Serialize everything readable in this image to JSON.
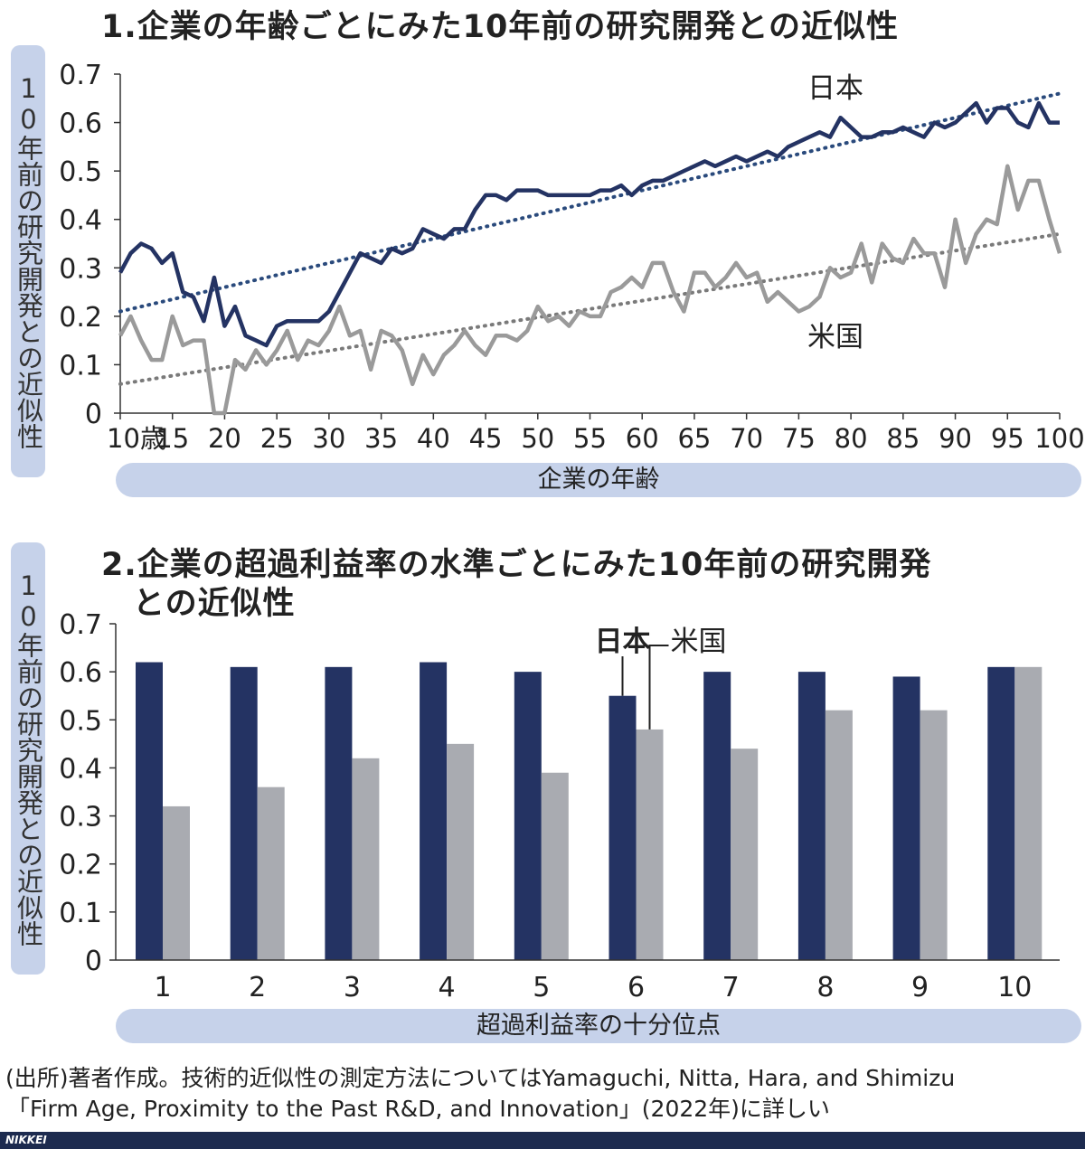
{
  "charts": {
    "chart1": {
      "title": "1.企業の年齢ごとにみた10年前の研究開発との近似性",
      "ylabel": "10年前の研究開発との近似性",
      "xlabel": "企業の年齢",
      "first_tick_label": "10歳"
    },
    "chart2": {
      "title_line1": "2.企業の超過利益率の水準ごとにみた10年前の研究開発",
      "title_line2": "との近似性",
      "ylabel": "10年前の研究開発との近似性",
      "xlabel": "超過利益率の十分位点"
    }
  },
  "colors": {
    "japan": "#243363",
    "us": "#9a9a9a",
    "us_bar": "#a9abb1",
    "label_bg": "#c6d2ea"
  },
  "chart_data": [
    {
      "type": "line",
      "title": "1.企業の年齢ごとにみた10年前の研究開発との近似性",
      "xlabel": "企業の年齢",
      "ylabel": "10年前の研究開発との近似性",
      "xlim": [
        10,
        100
      ],
      "ylim": [
        0,
        0.7
      ],
      "x_ticks": [
        "10歳",
        "15",
        "20",
        "25",
        "30",
        "35",
        "40",
        "45",
        "50",
        "55",
        "60",
        "65",
        "70",
        "75",
        "80",
        "85",
        "90",
        "95",
        "100"
      ],
      "y_ticks": [
        "0",
        "0.1",
        "0.2",
        "0.3",
        "0.4",
        "0.5",
        "0.6",
        "0.7"
      ],
      "x": [
        10,
        11,
        12,
        13,
        14,
        15,
        16,
        17,
        18,
        19,
        20,
        21,
        22,
        23,
        24,
        25,
        26,
        27,
        28,
        29,
        30,
        31,
        32,
        33,
        34,
        35,
        36,
        37,
        38,
        39,
        40,
        41,
        42,
        43,
        44,
        45,
        46,
        47,
        48,
        49,
        50,
        51,
        52,
        53,
        54,
        55,
        56,
        57,
        58,
        59,
        60,
        61,
        62,
        63,
        64,
        65,
        66,
        67,
        68,
        69,
        70,
        71,
        72,
        73,
        74,
        75,
        76,
        77,
        78,
        79,
        80,
        81,
        82,
        83,
        84,
        85,
        86,
        87,
        88,
        89,
        90,
        91,
        92,
        93,
        94,
        95,
        96,
        97,
        98,
        99,
        100
      ],
      "series": [
        {
          "name": "日本",
          "values": [
            0.29,
            0.33,
            0.35,
            0.34,
            0.31,
            0.33,
            0.25,
            0.24,
            0.19,
            0.28,
            0.18,
            0.22,
            0.16,
            0.15,
            0.14,
            0.18,
            0.19,
            0.19,
            0.19,
            0.19,
            0.21,
            0.25,
            0.29,
            0.33,
            0.32,
            0.31,
            0.34,
            0.33,
            0.34,
            0.38,
            0.37,
            0.36,
            0.38,
            0.38,
            0.42,
            0.45,
            0.45,
            0.44,
            0.46,
            0.46,
            0.46,
            0.45,
            0.45,
            0.45,
            0.45,
            0.45,
            0.46,
            0.46,
            0.47,
            0.45,
            0.47,
            0.48,
            0.48,
            0.49,
            0.5,
            0.51,
            0.52,
            0.51,
            0.52,
            0.53,
            0.52,
            0.53,
            0.54,
            0.53,
            0.55,
            0.56,
            0.57,
            0.58,
            0.57,
            0.61,
            0.59,
            0.57,
            0.57,
            0.58,
            0.58,
            0.59,
            0.58,
            0.57,
            0.6,
            0.59,
            0.6,
            0.62,
            0.64,
            0.6,
            0.63,
            0.63,
            0.6,
            0.59,
            0.64,
            0.6,
            0.6
          ],
          "trend": [
            0.21,
            0.66
          ]
        },
        {
          "name": "米国",
          "values": [
            0.16,
            0.2,
            0.15,
            0.11,
            0.11,
            0.2,
            0.14,
            0.15,
            0.15,
            0.0,
            0.0,
            0.11,
            0.09,
            0.13,
            0.1,
            0.13,
            0.17,
            0.11,
            0.15,
            0.14,
            0.17,
            0.22,
            0.16,
            0.17,
            0.09,
            0.17,
            0.16,
            0.13,
            0.06,
            0.12,
            0.08,
            0.12,
            0.14,
            0.17,
            0.14,
            0.12,
            0.16,
            0.16,
            0.15,
            0.17,
            0.22,
            0.19,
            0.2,
            0.18,
            0.21,
            0.2,
            0.2,
            0.25,
            0.26,
            0.28,
            0.26,
            0.31,
            0.31,
            0.25,
            0.21,
            0.29,
            0.29,
            0.26,
            0.28,
            0.31,
            0.28,
            0.29,
            0.23,
            0.25,
            0.23,
            0.21,
            0.22,
            0.24,
            0.3,
            0.28,
            0.29,
            0.35,
            0.27,
            0.35,
            0.32,
            0.31,
            0.36,
            0.33,
            0.33,
            0.26,
            0.4,
            0.31,
            0.37,
            0.4,
            0.39,
            0.51,
            0.42,
            0.48,
            0.48,
            0.4,
            0.33
          ],
          "trend": [
            0.06,
            0.37
          ]
        }
      ],
      "annotations": [
        "日本",
        "米国"
      ]
    },
    {
      "type": "bar",
      "title": "2.企業の超過利益率の水準ごとにみた10年前の研究開発との近似性",
      "xlabel": "超過利益率の十分位点",
      "ylabel": "10年前の研究開発との近似性",
      "ylim": [
        0,
        0.7
      ],
      "y_ticks": [
        "0",
        "0.1",
        "0.2",
        "0.3",
        "0.4",
        "0.5",
        "0.6",
        "0.7"
      ],
      "categories": [
        "1",
        "2",
        "3",
        "4",
        "5",
        "6",
        "7",
        "8",
        "9",
        "10"
      ],
      "series": [
        {
          "name": "日本",
          "values": [
            0.62,
            0.61,
            0.61,
            0.62,
            0.6,
            0.55,
            0.6,
            0.6,
            0.59,
            0.61
          ]
        },
        {
          "name": "米国",
          "values": [
            0.32,
            0.36,
            0.42,
            0.45,
            0.39,
            0.48,
            0.44,
            0.52,
            0.52,
            0.61
          ]
        }
      ]
    }
  ],
  "source": {
    "line1": "(出所)著者作成。技術的近似性の測定方法についてはYamaguchi, Nitta, Hara, and Shimizu",
    "line2": "「Firm Age, Proximity to the Past R&D, and Innovation」(2022年)に詳しい"
  },
  "footer": {
    "brand": "NIKKEI"
  }
}
